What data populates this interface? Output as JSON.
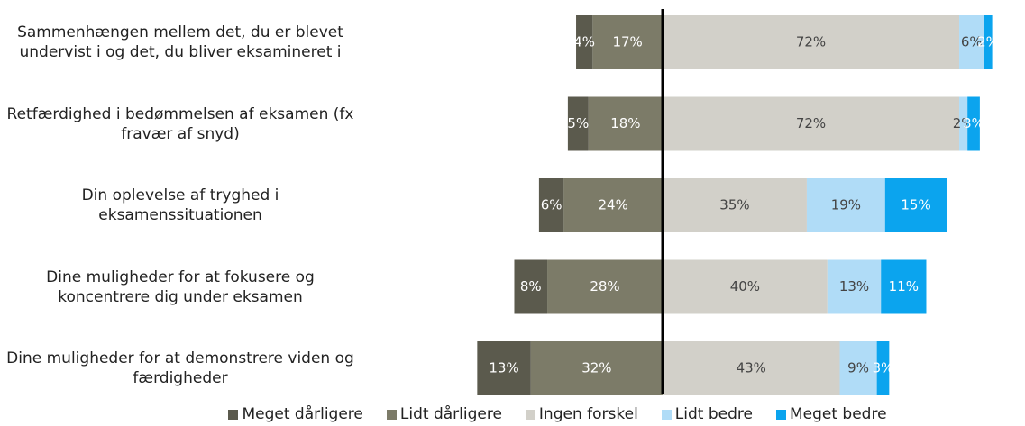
{
  "chart_data": {
    "type": "diverging-bar",
    "categories": [
      "Sammenhængen mellem det, du er blevet undervist i og det, du bliver eksamineret i",
      "Retfærdighed i bedømmelsen af eksamen (fx fravær af snyd)",
      "Din oplevelse af tryghed i eksamenssituationen",
      "Dine muligheder for at fokusere og koncentrere dig under eksamen",
      "Dine muligheder for at demonstrere viden og færdigheder"
    ],
    "series": [
      {
        "name": "Meget dårligere",
        "color": "#5b5a4d",
        "values": [
          4,
          5,
          6,
          8,
          13
        ],
        "value_labels": [
          "4%",
          "5%",
          "6%",
          "8%",
          "13%"
        ]
      },
      {
        "name": "Lidt dårligere",
        "color": "#7c7b68",
        "values": [
          17,
          18,
          24,
          28,
          32
        ],
        "value_labels": [
          "17%",
          "18%",
          "24%",
          "28%",
          "32%"
        ]
      },
      {
        "name": "Ingen forskel",
        "color": "#d2d0c9",
        "values": [
          72,
          72,
          35,
          40,
          43
        ],
        "value_labels": [
          "72%",
          "72%",
          "35%",
          "40%",
          "43%"
        ]
      },
      {
        "name": "Lidt bedre",
        "color": "#b0dcf7",
        "values": [
          6,
          2,
          19,
          13,
          9
        ],
        "value_labels": [
          "6%",
          "2%",
          "19%",
          "13%",
          "9%"
        ]
      },
      {
        "name": "Meget bedre",
        "color": "#0ba4ee",
        "values": [
          2,
          3,
          15,
          11,
          3
        ],
        "value_labels": [
          "2%",
          "3%",
          "15%",
          "11%",
          "3%"
        ]
      }
    ]
  }
}
